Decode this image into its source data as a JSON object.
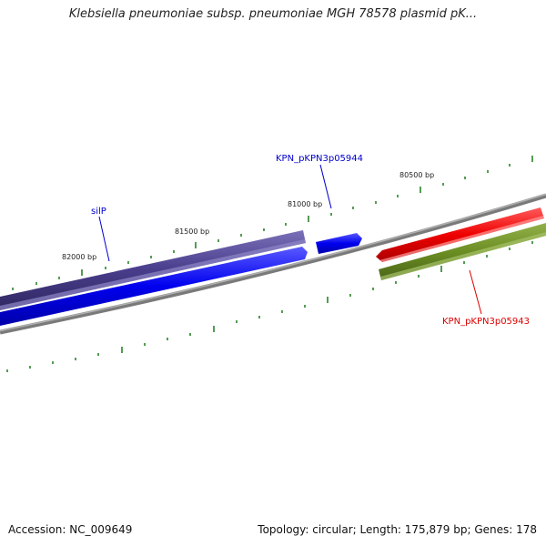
{
  "header": {
    "title": "Klebsiella pneumoniae subsp. pneumoniae MGH 78578 plasmid pK..."
  },
  "footer": {
    "accession": "Accession: NC_009649",
    "summary": "Topology: circular; Length: 175,879 bp; Genes: 178"
  },
  "map": {
    "ticks": {
      "labels": [
        "82000 bp",
        "81500 bp",
        "81000 bp",
        "80500 bp"
      ],
      "color": "#1a7a1a"
    },
    "genes": [
      {
        "label": "silP",
        "color": "#483d8b",
        "label_color": "#0000cc"
      },
      {
        "label": "KPN_pKPN3p05944",
        "color": "#0000ee",
        "label_color": "#0000cc"
      },
      {
        "label": "KPN_pKPN3p05943",
        "color": "#ee0000",
        "label_color": "#dd0000"
      },
      {
        "color": "#6b8e23"
      }
    ],
    "backbone_color": "#808080"
  }
}
